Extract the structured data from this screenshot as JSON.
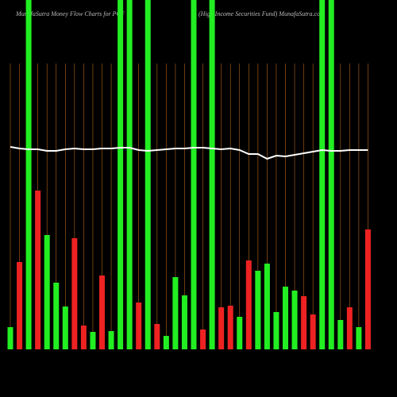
{
  "chart_data": {
    "type": "bar",
    "title": "MunafaSutra  Money Flow  Charts for PCF",
    "subtitle": "(High Income   Securities Fund) MunafaSutra.com",
    "categories": [
      null,
      null,
      null,
      null,
      null,
      null,
      null,
      null,
      null,
      null,
      null,
      null,
      null,
      null,
      null,
      null,
      null,
      null,
      null,
      null,
      null,
      null,
      null,
      null,
      null,
      null,
      null,
      null,
      null,
      null,
      null,
      null,
      null,
      null,
      null,
      null,
      null,
      null,
      null,
      null
    ],
    "values": [
      28,
      110,
      440,
      200,
      144,
      84,
      54,
      140,
      30,
      22,
      93,
      23,
      440,
      440,
      59,
      440,
      32,
      17,
      91,
      68,
      440,
      25,
      440,
      53,
      55,
      41,
      112,
      99,
      108,
      47,
      79,
      74,
      67,
      44,
      440,
      440,
      37,
      53,
      28,
      151
    ],
    "bar_colors": [
      "#22ee22",
      "#ee2222",
      "#22ee22",
      "#ee2222",
      "#22ee22",
      "#22ee22",
      "#22ee22",
      "#ee2222",
      "#ee2222",
      "#22ee22",
      "#ee2222",
      "#22ee22",
      "#22ee22",
      "#22ee22",
      "#ee2222",
      "#22ee22",
      "#ee2222",
      "#22ee22",
      "#22ee22",
      "#22ee22",
      "#22ee22",
      "#ee2222",
      "#22ee22",
      "#ee2222",
      "#ee2222",
      "#22ee22",
      "#ee2222",
      "#22ee22",
      "#22ee22",
      "#22ee22",
      "#22ee22",
      "#22ee22",
      "#ee2222",
      "#ee2222",
      "#22ee22",
      "#22ee22",
      "#22ee22",
      "#ee2222",
      "#22ee22",
      "#ee2222"
    ],
    "line_values": [
      255,
      253,
      252,
      252,
      250,
      250,
      252,
      253,
      252,
      252,
      253,
      253,
      254,
      254,
      251,
      250,
      251,
      252,
      253,
      253,
      254,
      254,
      253,
      252,
      253,
      251,
      246,
      246,
      240,
      244,
      243,
      245,
      247,
      249,
      251,
      250,
      250,
      251,
      251,
      251
    ],
    "line_color": "#ffffff",
    "grid_color": "#b5651d",
    "ylim": [
      0,
      440
    ]
  }
}
